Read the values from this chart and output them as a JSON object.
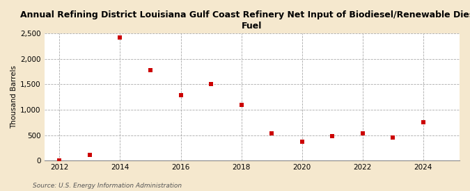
{
  "title": "Annual Refining District Louisiana Gulf Coast Refinery Net Input of Biodiesel/Renewable Diesel\nFuel",
  "ylabel": "Thousand Barrels",
  "source": "Source: U.S. Energy Information Administration",
  "background_color": "#f5e8ce",
  "plot_background_color": "#ffffff",
  "x_values": [
    2012,
    2013,
    2014,
    2015,
    2016,
    2017,
    2018,
    2019,
    2020,
    2021,
    2022,
    2023,
    2024
  ],
  "y_values": [
    10,
    120,
    2420,
    1780,
    1290,
    1500,
    1100,
    540,
    370,
    480,
    530,
    450,
    750
  ],
  "marker_color": "#cc0000",
  "marker_size": 5,
  "ylim": [
    0,
    2500
  ],
  "yticks": [
    0,
    500,
    1000,
    1500,
    2000,
    2500
  ],
  "ytick_labels": [
    "0",
    "500",
    "1,000",
    "1,500",
    "2,000",
    "2,500"
  ],
  "xticks": [
    2012,
    2014,
    2016,
    2018,
    2020,
    2022,
    2024
  ],
  "xlim": [
    2011.5,
    2025.2
  ],
  "grid_color": "#aaaaaa",
  "grid_linestyle": "--",
  "title_fontsize": 9,
  "axis_fontsize": 7.5,
  "tick_fontsize": 7.5,
  "source_fontsize": 6.5
}
